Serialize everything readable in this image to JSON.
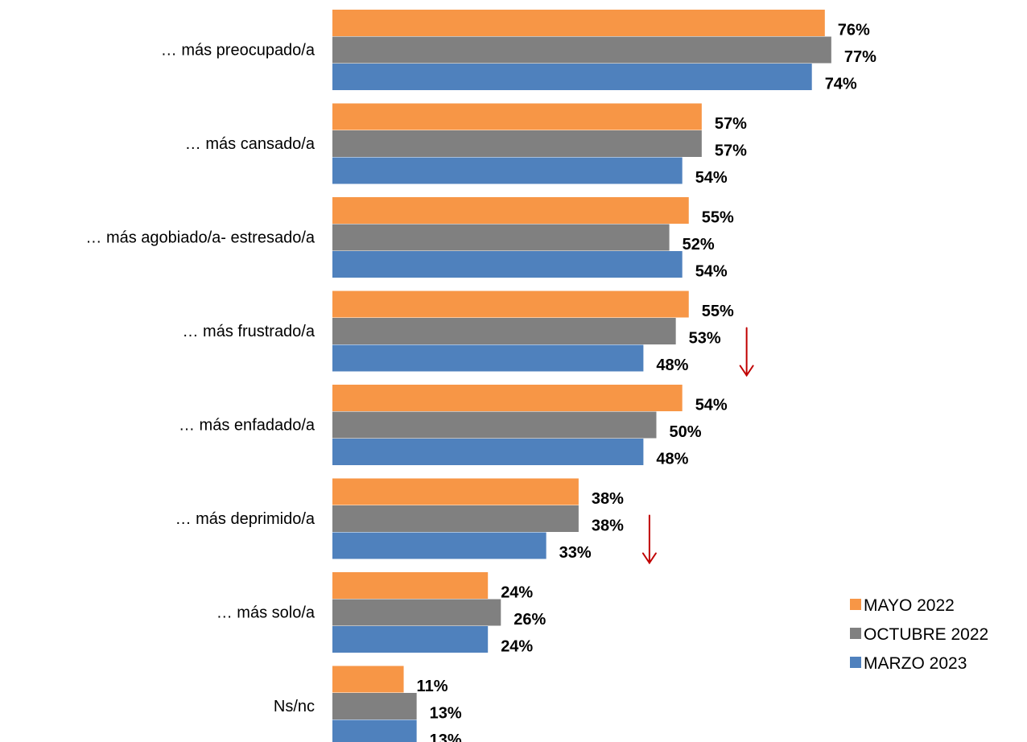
{
  "chart_data": {
    "type": "bar",
    "orientation": "horizontal",
    "categories": [
      "… más preocupado/a",
      "… más cansado/a",
      "… más agobiado/a- estresado/a",
      "… más frustrado/a",
      "… más enfadado/a",
      "… más deprimido/a",
      "… más solo/a",
      "Ns/nc"
    ],
    "series": [
      {
        "name": "MAYO 2022",
        "color": "#F79646",
        "values": [
          76,
          57,
          55,
          55,
          54,
          38,
          24,
          11
        ],
        "labels": [
          "76%",
          "57%",
          "55%",
          "55%",
          "54%",
          "38%",
          "24%",
          "11%"
        ]
      },
      {
        "name": "OCTUBRE 2022",
        "color": "#808080",
        "values": [
          77,
          57,
          52,
          53,
          50,
          38,
          26,
          13
        ],
        "labels": [
          "77%",
          "57%",
          "52%",
          "53%",
          "50%",
          "38%",
          "26%",
          "13%"
        ]
      },
      {
        "name": "MARZO 2023",
        "color": "#4F81BD",
        "values": [
          74,
          54,
          54,
          48,
          48,
          33,
          24,
          13
        ],
        "labels": [
          "74%",
          "54%",
          "54%",
          "48%",
          "48%",
          "33%",
          "24%",
          "13%"
        ]
      }
    ],
    "value_unit": "%",
    "title": "",
    "xlabel": "",
    "ylabel": "",
    "grid": false,
    "legend_position": "bottom-right",
    "annotations": [
      {
        "type": "down-arrow",
        "category": "… más frustrado/a",
        "color": "#C00000"
      },
      {
        "type": "down-arrow",
        "category": "… más deprimido/a",
        "color": "#C00000"
      }
    ]
  }
}
